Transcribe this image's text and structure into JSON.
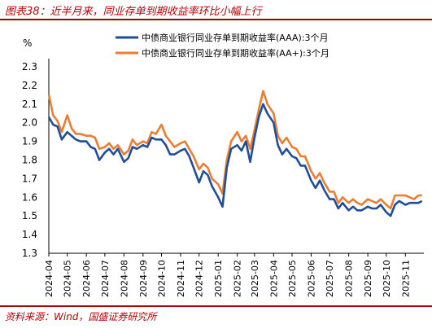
{
  "figure": {
    "title": "图表38：近半月来，同业存单到期收益率环比小幅上行",
    "source": "资料来源：Wind，国盛证券研究所"
  },
  "colors": {
    "aaa": "#1f4e9c",
    "aa_plus": "#ed7d31",
    "accent": "#c00000"
  },
  "chart_data": {
    "type": "line",
    "title": "",
    "xlabel": "",
    "ylabel": "%",
    "ylim": [
      1.3,
      2.3
    ],
    "yticks": [
      "2.3",
      "2.2",
      "2.1",
      "2.0",
      "1.9",
      "1.8",
      "1.7",
      "1.6",
      "1.5",
      "1.4",
      "1.3"
    ],
    "xticks": [
      "2024-04",
      "2024-05",
      "2024-06",
      "2024-07",
      "2024-08",
      "2024-09",
      "2024-10",
      "2024-11",
      "2024-12",
      "2025-01",
      "2025-02",
      "2025-03",
      "2025-04",
      "2025-05",
      "2025-06",
      "2025-07",
      "2025-08",
      "2025-09",
      "2025-10",
      "2025-11"
    ],
    "legend_position": "top-right",
    "x": [
      "2024-04-01",
      "2024-04-08",
      "2024-04-15",
      "2024-04-22",
      "2024-05-01",
      "2024-05-08",
      "2024-05-15",
      "2024-05-22",
      "2024-06-01",
      "2024-06-08",
      "2024-06-15",
      "2024-06-22",
      "2024-07-01",
      "2024-07-08",
      "2024-07-15",
      "2024-07-22",
      "2024-08-01",
      "2024-08-08",
      "2024-08-15",
      "2024-08-22",
      "2024-09-01",
      "2024-09-08",
      "2024-09-15",
      "2024-09-22",
      "2024-10-01",
      "2024-10-08",
      "2024-10-15",
      "2024-10-22",
      "2024-11-01",
      "2024-11-08",
      "2024-11-15",
      "2024-11-22",
      "2024-12-01",
      "2024-12-08",
      "2024-12-15",
      "2024-12-22",
      "2025-01-01",
      "2025-01-08",
      "2025-01-15",
      "2025-01-22",
      "2025-02-01",
      "2025-02-08",
      "2025-02-15",
      "2025-02-22",
      "2025-03-01",
      "2025-03-08",
      "2025-03-15",
      "2025-03-22",
      "2025-04-01",
      "2025-04-08",
      "2025-04-15",
      "2025-04-22",
      "2025-05-01",
      "2025-05-08",
      "2025-05-15",
      "2025-05-22",
      "2025-06-01",
      "2025-06-08",
      "2025-06-15",
      "2025-06-22",
      "2025-07-01",
      "2025-07-08",
      "2025-07-15",
      "2025-07-22",
      "2025-08-01",
      "2025-08-08",
      "2025-08-15",
      "2025-08-22",
      "2025-09-01",
      "2025-09-08",
      "2025-09-15",
      "2025-09-22",
      "2025-10-01",
      "2025-10-08",
      "2025-10-15",
      "2025-10-22",
      "2025-11-01",
      "2025-11-08",
      "2025-11-15",
      "2025-11-22",
      "2025-11-28"
    ],
    "series": [
      {
        "name": "中债商业银行同业存单到期收益率(AAA):3个月",
        "color": "#1f4e9c",
        "values": [
          2.03,
          1.99,
          1.98,
          1.91,
          1.95,
          1.93,
          1.91,
          1.9,
          1.9,
          1.87,
          1.86,
          1.8,
          1.84,
          1.86,
          1.83,
          1.86,
          1.79,
          1.81,
          1.87,
          1.86,
          1.88,
          1.87,
          1.92,
          1.91,
          1.91,
          1.88,
          1.83,
          1.83,
          1.85,
          1.86,
          1.82,
          1.76,
          1.68,
          1.74,
          1.72,
          1.66,
          1.6,
          1.55,
          1.76,
          1.86,
          1.88,
          1.85,
          1.9,
          1.79,
          1.92,
          2.03,
          2.1,
          2.05,
          2.0,
          1.88,
          1.83,
          1.86,
          1.82,
          1.81,
          1.77,
          1.77,
          1.69,
          1.65,
          1.69,
          1.64,
          1.59,
          1.59,
          1.54,
          1.57,
          1.53,
          1.55,
          1.53,
          1.53,
          1.55,
          1.54,
          1.54,
          1.56,
          1.52,
          1.5,
          1.56,
          1.58,
          1.56,
          1.57,
          1.57,
          1.57,
          1.58
        ]
      },
      {
        "name": "中债商业银行同业存单到期收益率(AA+):3个月",
        "color": "#ed7d31",
        "values": [
          2.15,
          2.04,
          2.01,
          1.95,
          2.04,
          1.97,
          1.94,
          1.94,
          1.93,
          1.93,
          1.92,
          1.86,
          1.87,
          1.89,
          1.86,
          1.88,
          1.83,
          1.85,
          1.91,
          1.88,
          1.9,
          1.89,
          1.95,
          1.94,
          1.99,
          1.93,
          1.9,
          1.87,
          1.89,
          1.9,
          1.86,
          1.82,
          1.75,
          1.78,
          1.76,
          1.7,
          1.67,
          1.62,
          1.8,
          1.9,
          1.95,
          1.9,
          1.93,
          1.86,
          1.96,
          2.07,
          2.17,
          2.1,
          2.05,
          1.93,
          1.89,
          1.92,
          1.87,
          1.86,
          1.82,
          1.82,
          1.74,
          1.7,
          1.73,
          1.68,
          1.63,
          1.63,
          1.57,
          1.6,
          1.57,
          1.59,
          1.57,
          1.56,
          1.59,
          1.58,
          1.57,
          1.59,
          1.56,
          1.54,
          1.61,
          1.61,
          1.61,
          1.6,
          1.59,
          1.61,
          1.61
        ]
      }
    ]
  }
}
